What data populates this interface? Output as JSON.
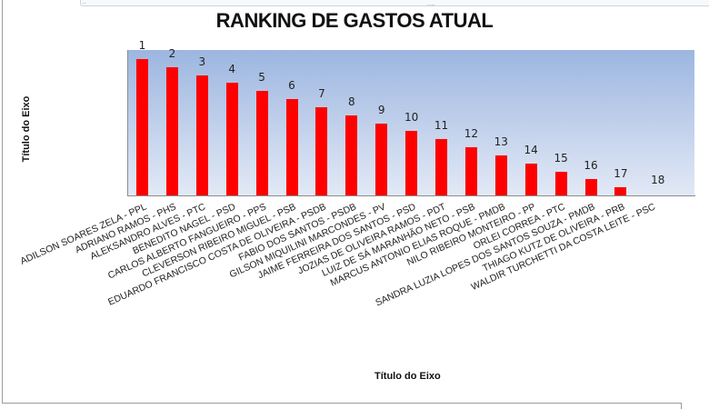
{
  "chart_data": {
    "type": "bar",
    "title": "RANKING DE GASTOS ATUAL",
    "xlabel": "Título do Eixo",
    "ylabel": "Título do Eixo",
    "categories": [
      "ADILSON SOARES ZELA - PPL",
      "ADRIANO RAMOS - PHS",
      "ALEKSANDRO ALVES - PTC",
      "BENEDITO NAGEL - PSD",
      "CARLOS ALBERTO FANGUEIRO - PPS",
      "CLEVERSON RIBEIRO MIGUEL - PSB",
      "EDUARDO FRANCISCO COSTA DE OLIVEIRA - PSDB",
      "FABIO DOS SANTOS - PSDB",
      "GILSON MIQUILINI MARCONDES - PV",
      "JAIME FERREIRA  DOS SANTOS - PSD",
      "JOZIAS DE OLIVEIRA RAMOS - PDT",
      "LUIZ DE SÁ MARANHÃO NETO - PSB",
      "MARCUS ANTONIO ELIAS ROQUE - PMDB",
      "NILO RIBEIRO MONTEIRO - PP",
      "ORLEI CORREA - PTC",
      "SANDRA LUZIA LOPES DOS SANTOS SOUZA - PMDB",
      "THIAGO KUTZ DE OLIVEIRA - PRB",
      "WALDIR TURCHETTI DA COSTA LEITE - PSC"
    ],
    "values": [
      17,
      16,
      15,
      14,
      13,
      12,
      11,
      10,
      9,
      8,
      7,
      6,
      5,
      4,
      3,
      2,
      1,
      0
    ],
    "data_labels": [
      "1",
      "2",
      "3",
      "4",
      "5",
      "6",
      "7",
      "8",
      "9",
      "10",
      "11",
      "12",
      "13",
      "14",
      "15",
      "16",
      "17",
      "18"
    ],
    "ylim": [
      0,
      18
    ],
    "grid": false,
    "legend": "none",
    "bar_color": "#ff0000",
    "plot_background": "gradient #9cb6e0 to #e2e9f6"
  },
  "frame": {
    "handle_top": "....",
    "handle_left": "⁚⁚"
  }
}
